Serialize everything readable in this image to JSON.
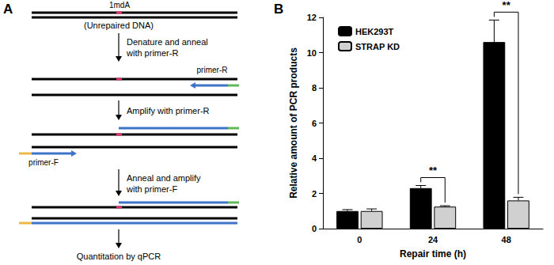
{
  "panel_labels": [
    "A",
    "B"
  ],
  "diagram": {
    "lesion_label": "1mdA",
    "dna_label": "(Unrepaired DNA)",
    "steps": [
      [
        "Denature and anneal",
        "with primer-R"
      ],
      [
        "Amplify with primer-R"
      ],
      [
        "Anneal and amplify",
        "with primer-F"
      ]
    ],
    "primer_r": "primer-R",
    "primer_f": "primer-F",
    "result": "Quantitation by qPCR"
  },
  "chart_data": {
    "type": "bar",
    "categories": [
      "0",
      "24",
      "48"
    ],
    "x_label": "Repair time (h)",
    "y_label": "Relative amount of PCR products",
    "series": [
      {
        "name": "HEK293T",
        "color": "#000000",
        "values": [
          1.0,
          2.3,
          10.6
        ],
        "errors": [
          0.08,
          0.15,
          1.25
        ]
      },
      {
        "name": "STRAP KD",
        "color": "#d0d0d0",
        "values": [
          1.0,
          1.25,
          1.6
        ],
        "errors": [
          0.12,
          0.05,
          0.18
        ]
      }
    ],
    "ylim": [
      0,
      12
    ],
    "yticks": [
      0,
      2,
      4,
      6,
      8,
      10,
      12
    ],
    "grid": false,
    "legend": "upper left",
    "annotations": [
      {
        "category": "24",
        "text": "**"
      },
      {
        "category": "48",
        "text": "**"
      }
    ]
  }
}
